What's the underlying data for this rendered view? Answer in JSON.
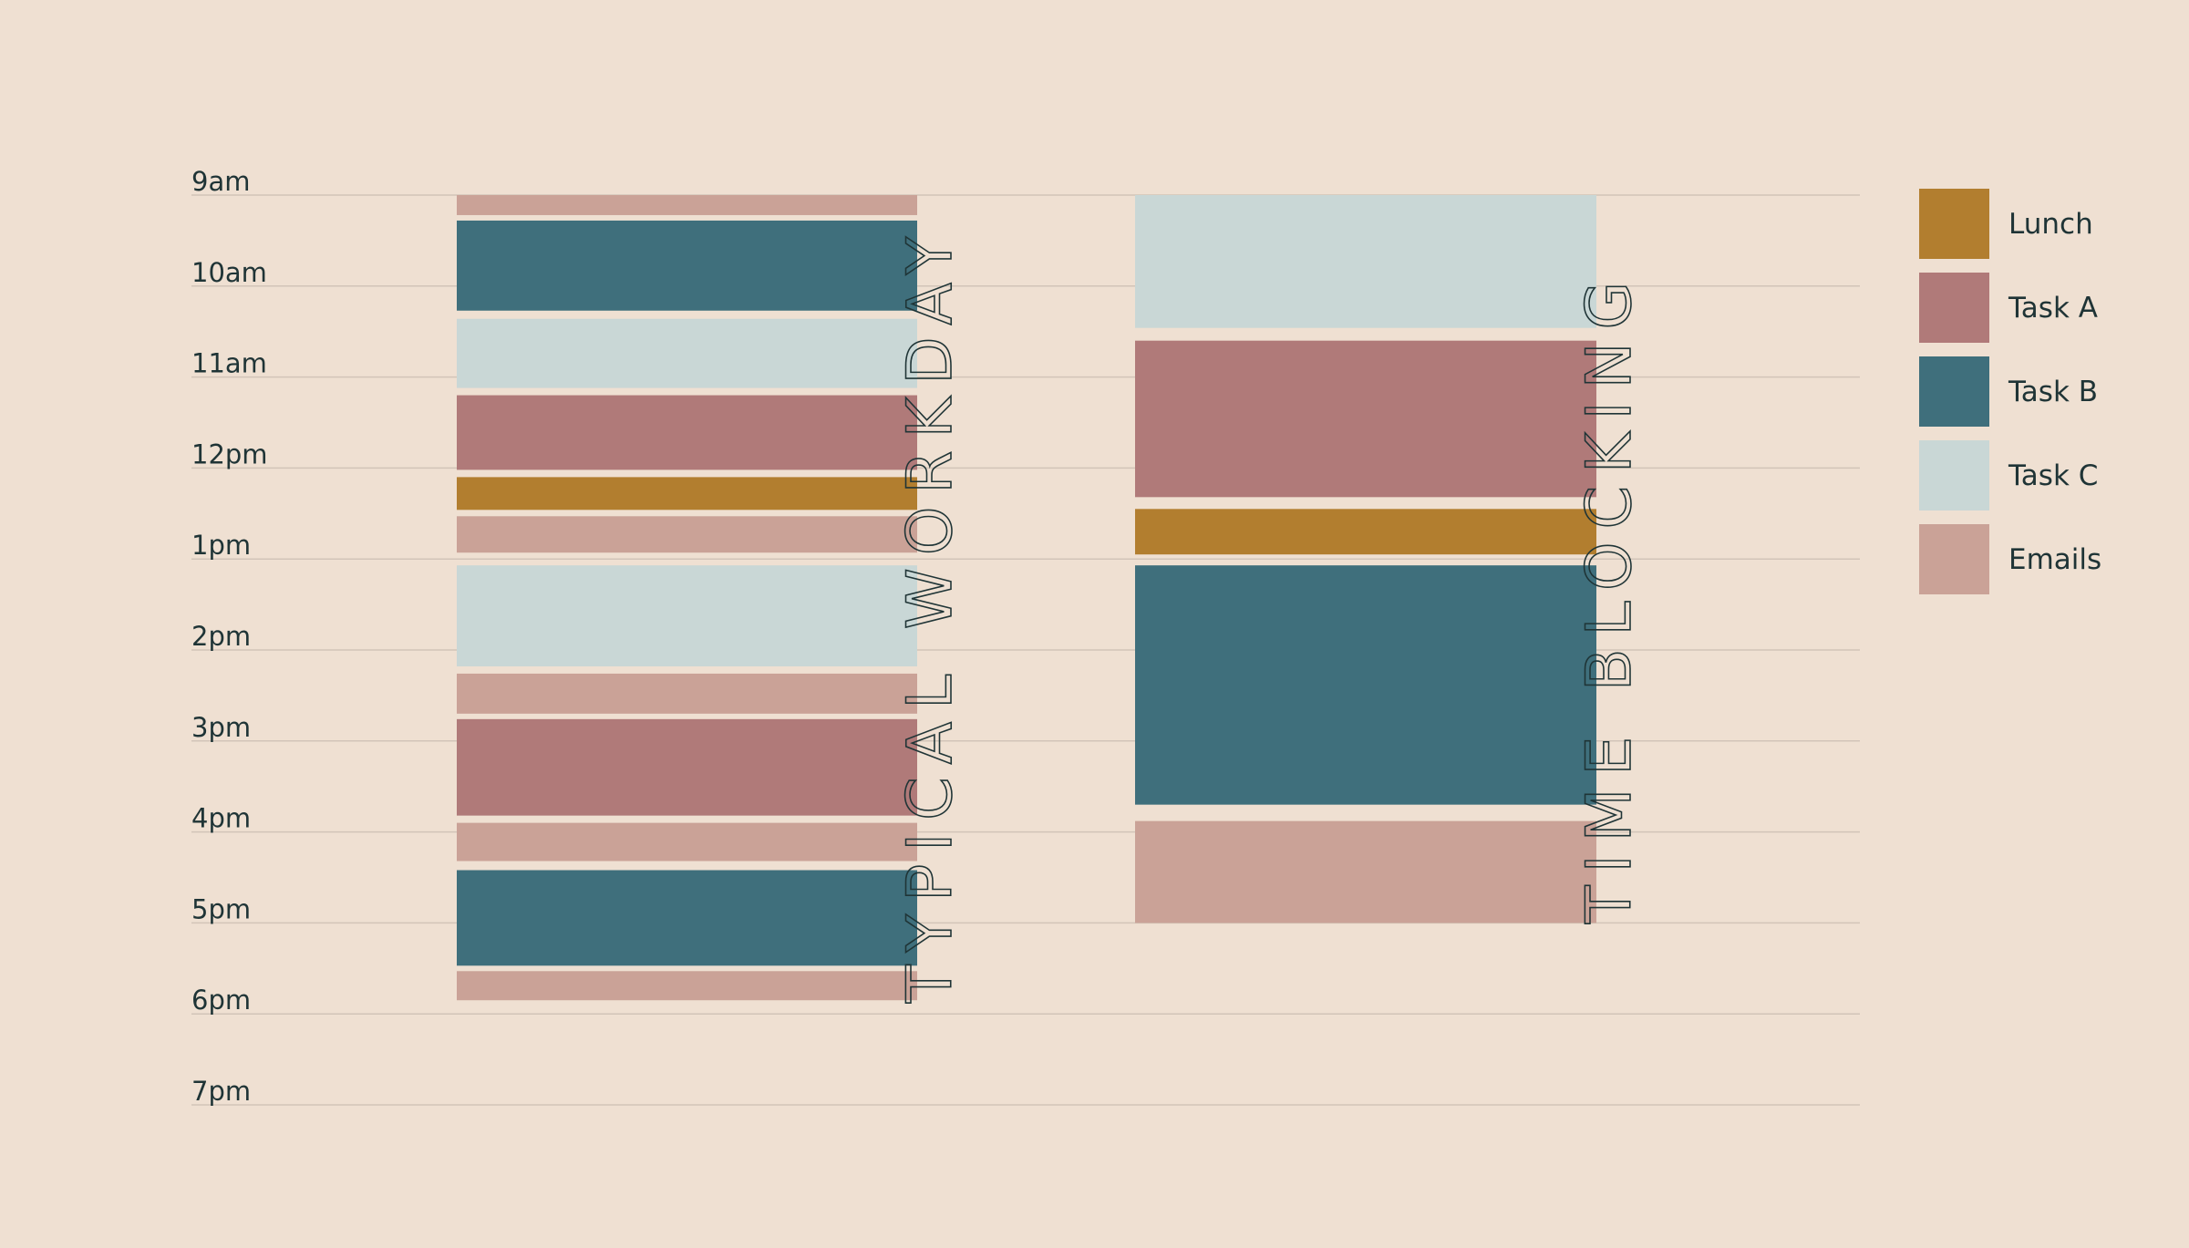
{
  "chart_data": {
    "type": "bar",
    "orientation": "vertical-timeline",
    "hours": [
      "9am",
      "10am",
      "11am",
      "12pm",
      "1pm",
      "2pm",
      "3pm",
      "4pm",
      "5pm",
      "6pm",
      "7pm"
    ],
    "ylim": [
      9,
      19
    ],
    "grid": true,
    "legend_position": "right",
    "legend": [
      {
        "name": "Lunch",
        "color": "#b27e2f"
      },
      {
        "name": "Task A",
        "color": "#b07a79"
      },
      {
        "name": "Task B",
        "color": "#3f6f7c"
      },
      {
        "name": "Task C",
        "color": "#c9d7d6"
      },
      {
        "name": "Emails",
        "color": "#caa297"
      }
    ],
    "columns": [
      {
        "title": "TYPICAL WORKDAY",
        "blocks": [
          {
            "task": "Emails",
            "start": 9.0,
            "end": 9.22
          },
          {
            "task": "Task B",
            "start": 9.28,
            "end": 10.27
          },
          {
            "task": "Task C",
            "start": 10.36,
            "end": 11.12
          },
          {
            "task": "Task A",
            "start": 11.2,
            "end": 12.02
          },
          {
            "task": "Lunch",
            "start": 12.1,
            "end": 12.46
          },
          {
            "task": "Emails",
            "start": 12.53,
            "end": 12.93
          },
          {
            "task": "Task C",
            "start": 13.07,
            "end": 14.18
          },
          {
            "task": "Emails",
            "start": 14.26,
            "end": 14.7
          },
          {
            "task": "Task A",
            "start": 14.76,
            "end": 15.82
          },
          {
            "task": "Emails",
            "start": 15.9,
            "end": 16.32
          },
          {
            "task": "Task B",
            "start": 16.42,
            "end": 17.47
          },
          {
            "task": "Emails",
            "start": 17.53,
            "end": 17.85
          }
        ]
      },
      {
        "title": "TIME BLOCKING",
        "blocks": [
          {
            "task": "Task C",
            "start": 9.0,
            "end": 10.46
          },
          {
            "task": "Task A",
            "start": 10.6,
            "end": 12.32
          },
          {
            "task": "Lunch",
            "start": 12.45,
            "end": 12.95
          },
          {
            "task": "Task B",
            "start": 13.07,
            "end": 15.7
          },
          {
            "task": "Emails",
            "start": 15.88,
            "end": 17.0
          }
        ]
      }
    ]
  }
}
